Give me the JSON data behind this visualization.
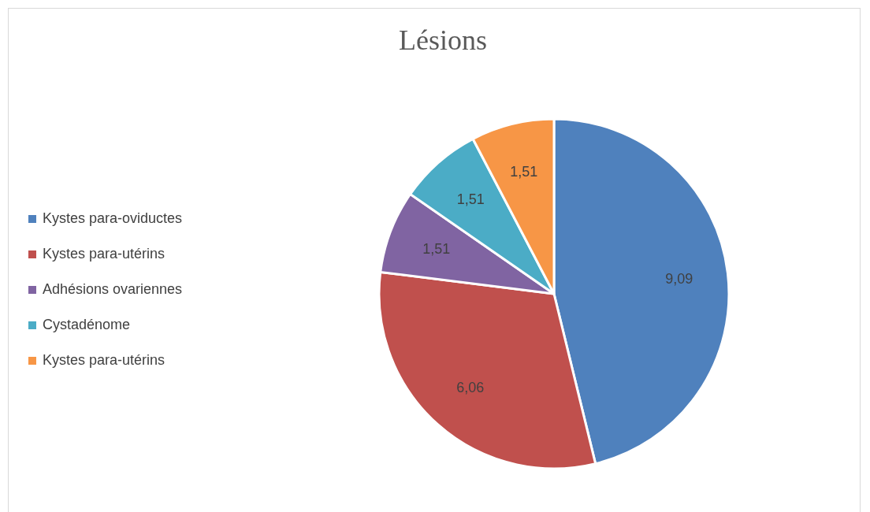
{
  "chart_data": {
    "type": "pie",
    "title": "Lésions",
    "categories": [
      "Kystes para-oviductes",
      "Kystes para-utérins",
      "Adhésions ovariennes",
      "Cystadénome",
      "Kystes para-utérins"
    ],
    "values": [
      9.09,
      6.06,
      1.51,
      1.51,
      1.51
    ],
    "colors": [
      "#4f81bd",
      "#c0504d",
      "#8064a2",
      "#4bacc6",
      "#f79646"
    ],
    "value_labels": [
      "9,09",
      "6,06",
      "1,51",
      "1,51",
      "1,51"
    ],
    "legend": "left"
  }
}
